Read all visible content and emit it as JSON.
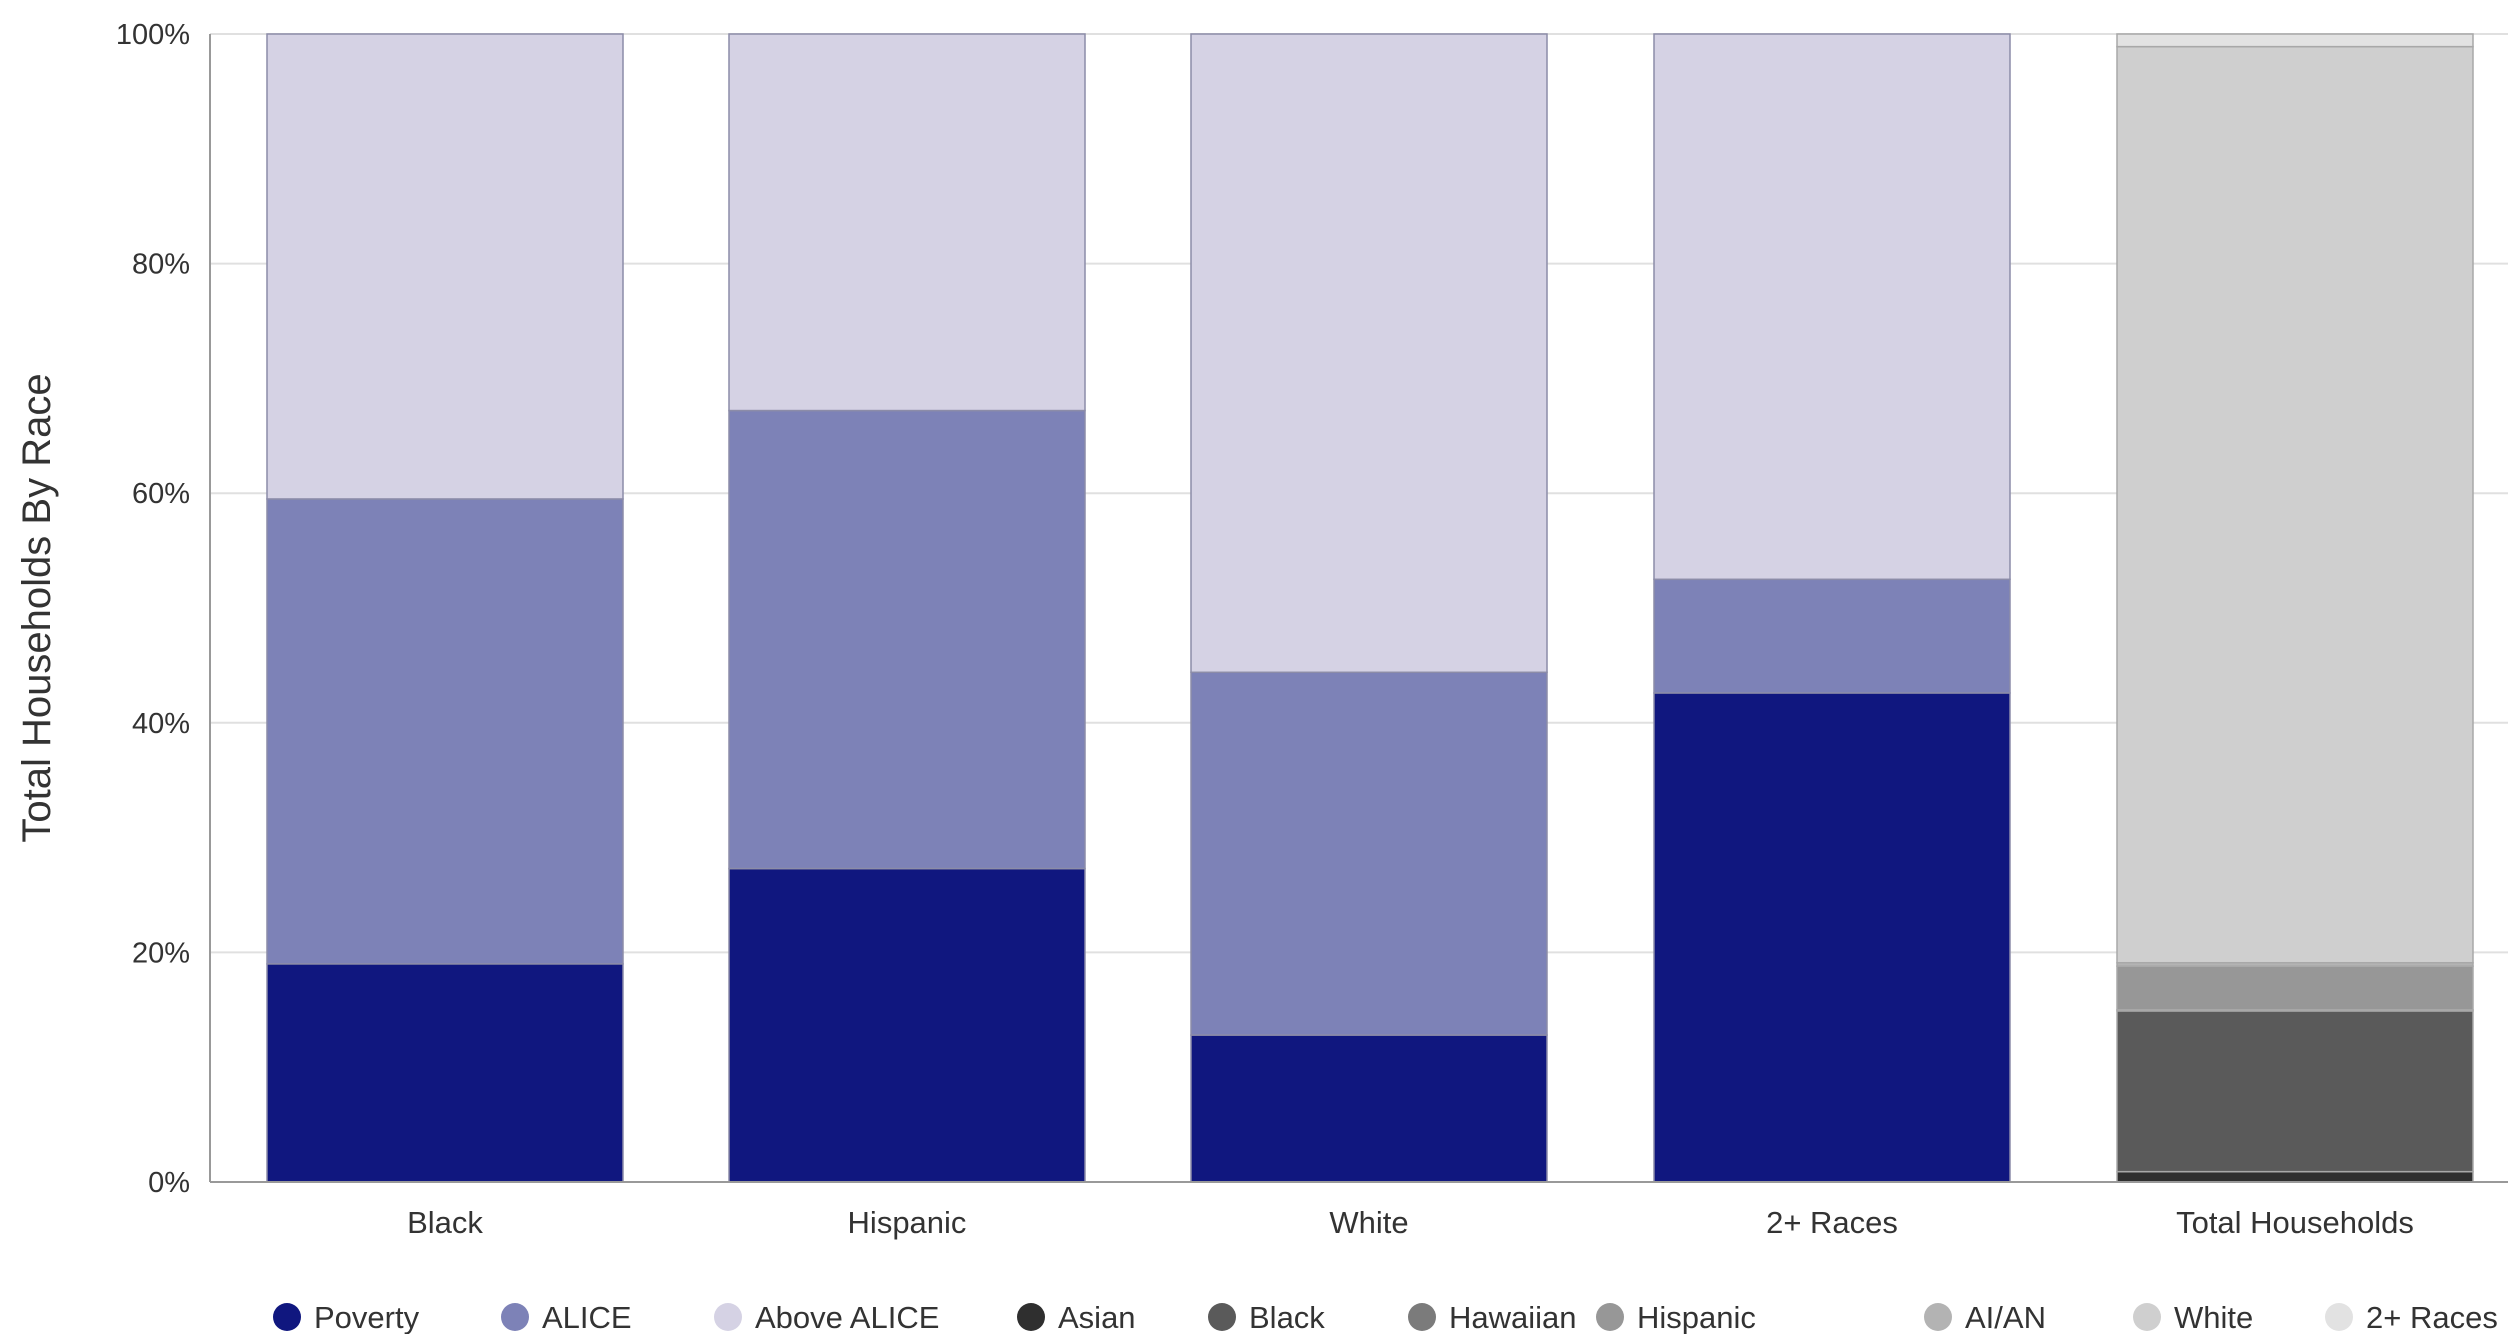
{
  "chart_data": {
    "type": "bar",
    "stacked": true,
    "ylabel": "Total Households By Race",
    "xlabel": "",
    "ylim": [
      0,
      100
    ],
    "yticks": [
      "0%",
      "20%",
      "40%",
      "60%",
      "80%",
      "100%"
    ],
    "ytick_values": [
      0,
      20,
      40,
      60,
      80,
      100
    ],
    "grid": true,
    "legend_position": "bottom",
    "categories": [
      "Black",
      "Hispanic",
      "White",
      "2+ Races"
    ],
    "series": [
      {
        "name": "Poverty",
        "color": "#10177f",
        "values": [
          19,
          27.3,
          12.8,
          42.6
        ]
      },
      {
        "name": "ALICE",
        "color": "#7d82b7",
        "values": [
          40.5,
          39.9,
          31.6,
          9.9
        ]
      },
      {
        "name": "Above ALICE",
        "color": "#d5d2e4",
        "values": [
          40.5,
          32.8,
          55.6,
          47.5
        ]
      }
    ],
    "total_bar": {
      "category": "Total Households",
      "segments": [
        {
          "name": "Asian",
          "color": "#2f2f2f",
          "value": 0.9
        },
        {
          "name": "Black",
          "color": "#5a5a5a",
          "value": 14.0
        },
        {
          "name": "Hawaiian",
          "color": "#7b7b7b",
          "value": 0.1
        },
        {
          "name": "Hispanic",
          "color": "#979797",
          "value": 3.8
        },
        {
          "name": "AI/AN",
          "color": "#b3b3b3",
          "value": 0.3
        },
        {
          "name": "White",
          "color": "#cfcfcf",
          "value": 79.8
        },
        {
          "name": "2+ Races",
          "color": "#e2e2e2",
          "value": 1.1
        }
      ]
    },
    "legend": [
      {
        "name": "Poverty",
        "color": "#10177f"
      },
      {
        "name": "ALICE",
        "color": "#7d82b7"
      },
      {
        "name": "Above ALICE",
        "color": "#d5d2e4"
      },
      {
        "name": "Asian",
        "color": "#2f2f2f"
      },
      {
        "name": "Black",
        "color": "#5a5a5a"
      },
      {
        "name": "Hawaiian",
        "color": "#7b7b7b"
      },
      {
        "name": "Hispanic",
        "color": "#979797"
      },
      {
        "name": "AI/AN",
        "color": "#b3b3b3"
      },
      {
        "name": "White",
        "color": "#cfcfcf"
      },
      {
        "name": "2+ Races",
        "color": "#e2e2e2"
      }
    ]
  }
}
